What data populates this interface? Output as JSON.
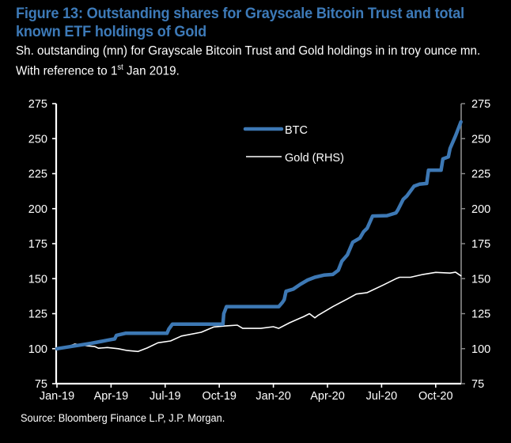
{
  "chart_data": {
    "type": "line",
    "title": "Figure 13: Outstanding shares for Grayscale Bitcoin Trust and total known ETF holdings of Gold",
    "subtitle_pre": "Sh. outstanding (mn) for Grayscale Bitcoin Trust and Gold holdings in in troy ounce mn. With reference to 1",
    "subtitle_sup": "st",
    "subtitle_post": " Jan 2019.",
    "source": "Source: Bloomberg Finance L.P, J.P. Morgan.",
    "xlabel": "",
    "ylabel": "",
    "x_unit": "months since Jan-2019",
    "xlim": [
      0,
      22.4
    ],
    "x_ticks": [
      {
        "label": "Jan-19",
        "x": 0
      },
      {
        "label": "Apr-19",
        "x": 3
      },
      {
        "label": "Jul-19",
        "x": 6
      },
      {
        "label": "Oct-19",
        "x": 9
      },
      {
        "label": "Jan-20",
        "x": 12
      },
      {
        "label": "Apr-20",
        "x": 15
      },
      {
        "label": "Jul-20",
        "x": 18
      },
      {
        "label": "Oct-20",
        "x": 21
      }
    ],
    "ylim_left": [
      75,
      275
    ],
    "ylim_right": [
      75,
      275
    ],
    "y_ticks_left": [
      "75",
      "100",
      "125",
      "150",
      "175",
      "200",
      "225",
      "250",
      "275"
    ],
    "y_ticks_right": [
      "75",
      "100",
      "125",
      "150",
      "175",
      "200",
      "225",
      "250",
      "275"
    ],
    "legend_position": "top-center",
    "grid": false,
    "series": [
      {
        "name": "BTC",
        "axis": "left",
        "color": "#3d78b4",
        "points": [
          [
            0,
            100
          ],
          [
            1.0,
            102
          ],
          [
            1.9,
            103.8
          ],
          [
            2.8,
            106
          ],
          [
            3.2,
            107
          ],
          [
            3.3,
            109.5
          ],
          [
            3.8,
            111
          ],
          [
            6.1,
            111
          ],
          [
            6.2,
            114
          ],
          [
            6.4,
            117.5
          ],
          [
            9.2,
            117.5
          ],
          [
            9.25,
            125
          ],
          [
            9.4,
            130
          ],
          [
            12.3,
            130
          ],
          [
            12.5,
            133
          ],
          [
            12.6,
            135
          ],
          [
            12.7,
            141
          ],
          [
            13.1,
            142.5
          ],
          [
            13.5,
            146
          ],
          [
            13.9,
            149
          ],
          [
            14.3,
            151
          ],
          [
            14.8,
            152.5
          ],
          [
            15.3,
            153
          ],
          [
            15.6,
            156
          ],
          [
            15.8,
            162.5
          ],
          [
            16.1,
            167
          ],
          [
            16.4,
            176
          ],
          [
            16.8,
            179
          ],
          [
            17.0,
            183.5
          ],
          [
            17.2,
            186
          ],
          [
            17.5,
            194.7
          ],
          [
            18.3,
            195
          ],
          [
            18.8,
            197
          ],
          [
            18.9,
            199
          ],
          [
            19.2,
            206.7
          ],
          [
            19.4,
            209
          ],
          [
            19.8,
            216
          ],
          [
            20.1,
            217.5
          ],
          [
            20.5,
            218
          ],
          [
            20.6,
            227.5
          ],
          [
            21.3,
            227.5
          ],
          [
            21.4,
            235.5
          ],
          [
            21.7,
            237
          ],
          [
            21.8,
            243
          ],
          [
            22.1,
            252
          ],
          [
            22.4,
            262
          ]
        ]
      },
      {
        "name": "Gold (RHS)",
        "axis": "right",
        "color": "#ffffff",
        "points": [
          [
            0,
            100
          ],
          [
            0.6,
            101.5
          ],
          [
            1.0,
            103.3
          ],
          [
            1.7,
            102
          ],
          [
            2.1,
            101.5
          ],
          [
            2.3,
            100.3
          ],
          [
            2.8,
            100.8
          ],
          [
            3.4,
            100
          ],
          [
            3.9,
            98.7
          ],
          [
            4.5,
            98
          ],
          [
            5.0,
            100.5
          ],
          [
            5.6,
            104.2
          ],
          [
            6.3,
            105.5
          ],
          [
            6.9,
            109
          ],
          [
            8.0,
            111.7
          ],
          [
            8.7,
            115.5
          ],
          [
            9.3,
            116.2
          ],
          [
            10.0,
            116.8
          ],
          [
            10.3,
            114.5
          ],
          [
            11.3,
            114.5
          ],
          [
            12.0,
            115.7
          ],
          [
            12.3,
            114.5
          ],
          [
            12.9,
            118.5
          ],
          [
            13.7,
            123
          ],
          [
            14.0,
            125
          ],
          [
            14.3,
            122
          ],
          [
            14.5,
            124
          ],
          [
            15.3,
            130
          ],
          [
            16.1,
            135.5
          ],
          [
            16.6,
            139
          ],
          [
            17.2,
            140
          ],
          [
            18.1,
            145.5
          ],
          [
            18.8,
            150
          ],
          [
            19.0,
            151
          ],
          [
            19.6,
            151
          ],
          [
            20.3,
            153
          ],
          [
            21.0,
            154.5
          ],
          [
            21.8,
            154
          ],
          [
            22.1,
            154.6
          ],
          [
            22.4,
            152
          ]
        ]
      }
    ]
  }
}
